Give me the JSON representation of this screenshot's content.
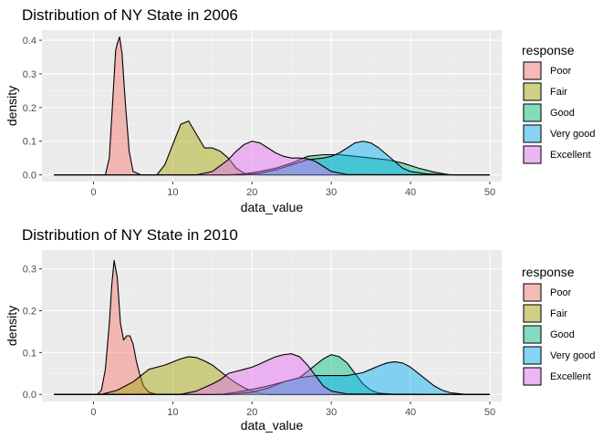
{
  "chart_data": [
    {
      "type": "area",
      "title": "Distribution of NY State in 2006",
      "xlabel": "data_value",
      "ylabel": "density",
      "xlim": [
        -6.5,
        51.5
      ],
      "ylim": [
        -0.02,
        0.43
      ],
      "x_ticks": [
        0,
        10,
        20,
        30,
        40,
        50
      ],
      "y_ticks": [
        0.0,
        0.1,
        0.2,
        0.3,
        0.4
      ],
      "y_tick_labels": [
        "0.0",
        "0.1",
        "0.2",
        "0.3",
        "0.4"
      ],
      "grid": true,
      "legend": {
        "title": "response",
        "position": "right"
      },
      "series": [
        {
          "name": "Poor",
          "color": "#F8766D",
          "x": [
            -5,
            1.5,
            2.0,
            2.5,
            2.8,
            3.0,
            3.3,
            3.6,
            4.0,
            4.5,
            5.0,
            6.0,
            50
          ],
          "values": [
            0,
            0,
            0.05,
            0.25,
            0.37,
            0.39,
            0.41,
            0.36,
            0.22,
            0.07,
            0.01,
            0,
            0
          ]
        },
        {
          "name": "Fair",
          "color": "#A3A500",
          "x": [
            -5,
            8,
            9,
            10,
            11,
            12,
            13,
            14,
            15,
            16,
            17,
            18,
            19,
            20,
            21,
            50
          ],
          "values": [
            0,
            0,
            0.03,
            0.09,
            0.15,
            0.16,
            0.12,
            0.08,
            0.08,
            0.07,
            0.05,
            0.02,
            0.005,
            0.002,
            0,
            0
          ]
        },
        {
          "name": "Good",
          "color": "#00BF7D",
          "x": [
            -5,
            17,
            19,
            21,
            23,
            25,
            27,
            29,
            31,
            33,
            35,
            37,
            39,
            41,
            43,
            45,
            50
          ],
          "values": [
            0,
            0,
            0.003,
            0.01,
            0.02,
            0.035,
            0.055,
            0.06,
            0.06,
            0.055,
            0.05,
            0.045,
            0.035,
            0.02,
            0.008,
            0,
            0
          ]
        },
        {
          "name": "Very good",
          "color": "#00B0F6",
          "x": [
            -5,
            19,
            21,
            23,
            25,
            27,
            29,
            30,
            31,
            32,
            33,
            34,
            35,
            36,
            37,
            38,
            39,
            40,
            42,
            44,
            46,
            50
          ],
          "values": [
            0,
            0,
            0.005,
            0.015,
            0.03,
            0.045,
            0.05,
            0.055,
            0.065,
            0.08,
            0.095,
            0.1,
            0.095,
            0.08,
            0.06,
            0.04,
            0.02,
            0.01,
            0.003,
            0.001,
            0,
            0
          ]
        },
        {
          "name": "Excellent",
          "color": "#E76BF3",
          "x": [
            -5,
            13,
            15,
            17,
            18,
            19,
            20,
            21,
            22,
            23,
            24,
            25,
            26,
            27,
            28,
            29,
            30,
            32,
            50
          ],
          "values": [
            0,
            0,
            0.01,
            0.045,
            0.07,
            0.09,
            0.1,
            0.095,
            0.08,
            0.065,
            0.055,
            0.05,
            0.05,
            0.048,
            0.04,
            0.025,
            0.01,
            0.001,
            0
          ]
        }
      ]
    },
    {
      "type": "area",
      "title": "Distribution of NY State in 2010",
      "xlabel": "data_value",
      "ylabel": "density",
      "xlim": [
        -6.5,
        51.5
      ],
      "ylim": [
        -0.017,
        0.345
      ],
      "x_ticks": [
        0,
        10,
        20,
        30,
        40,
        50
      ],
      "y_ticks": [
        0.0,
        0.1,
        0.2,
        0.3
      ],
      "y_tick_labels": [
        "0.0",
        "0.1",
        "0.2",
        "0.3"
      ],
      "grid": true,
      "legend": {
        "title": "response",
        "position": "right"
      },
      "series": [
        {
          "name": "Poor",
          "color": "#F8766D",
          "x": [
            -5,
            0.5,
            1.0,
            1.5,
            2.0,
            2.3,
            2.6,
            3.0,
            3.4,
            3.8,
            4.2,
            4.6,
            5.0,
            5.4,
            5.8,
            6.3,
            7.0,
            8.0,
            50
          ],
          "values": [
            0,
            0,
            0.01,
            0.06,
            0.17,
            0.26,
            0.32,
            0.28,
            0.17,
            0.13,
            0.14,
            0.14,
            0.12,
            0.08,
            0.05,
            0.02,
            0.005,
            0,
            0
          ]
        },
        {
          "name": "Fair",
          "color": "#A3A500",
          "x": [
            -5,
            1,
            3,
            5,
            7,
            9,
            11,
            12,
            13,
            14,
            15,
            16,
            17,
            18,
            19,
            20,
            21,
            22,
            50
          ],
          "values": [
            0,
            0,
            0.01,
            0.03,
            0.06,
            0.07,
            0.085,
            0.09,
            0.088,
            0.08,
            0.07,
            0.055,
            0.04,
            0.027,
            0.016,
            0.008,
            0.003,
            0,
            0
          ]
        },
        {
          "name": "Good",
          "color": "#00BF7D",
          "x": [
            -5,
            16,
            18,
            20,
            22,
            24,
            26,
            27,
            28,
            29,
            30,
            31,
            32,
            33,
            34,
            35,
            36,
            38,
            50
          ],
          "values": [
            0,
            0,
            0.005,
            0.012,
            0.02,
            0.03,
            0.04,
            0.055,
            0.07,
            0.085,
            0.095,
            0.09,
            0.075,
            0.05,
            0.025,
            0.01,
            0.003,
            0,
            0
          ]
        },
        {
          "name": "Very good",
          "color": "#00B0F6",
          "x": [
            -5,
            17,
            20,
            22,
            24,
            26,
            28,
            30,
            32,
            34,
            35,
            36,
            37,
            38,
            39,
            40,
            41,
            42,
            43,
            44,
            45,
            47,
            50
          ],
          "values": [
            0,
            0,
            0.005,
            0.015,
            0.03,
            0.04,
            0.045,
            0.045,
            0.045,
            0.052,
            0.06,
            0.068,
            0.075,
            0.078,
            0.075,
            0.065,
            0.05,
            0.035,
            0.02,
            0.01,
            0.004,
            0,
            0
          ]
        },
        {
          "name": "Excellent",
          "color": "#E76BF3",
          "x": [
            -5,
            11,
            13,
            15,
            16,
            17,
            18,
            19,
            20,
            21,
            22,
            23,
            24,
            25,
            26,
            27,
            28,
            29,
            30,
            32,
            50
          ],
          "values": [
            0,
            0,
            0.008,
            0.025,
            0.035,
            0.05,
            0.055,
            0.06,
            0.065,
            0.073,
            0.082,
            0.09,
            0.095,
            0.097,
            0.09,
            0.07,
            0.045,
            0.02,
            0.008,
            0.001,
            0
          ]
        }
      ]
    }
  ]
}
